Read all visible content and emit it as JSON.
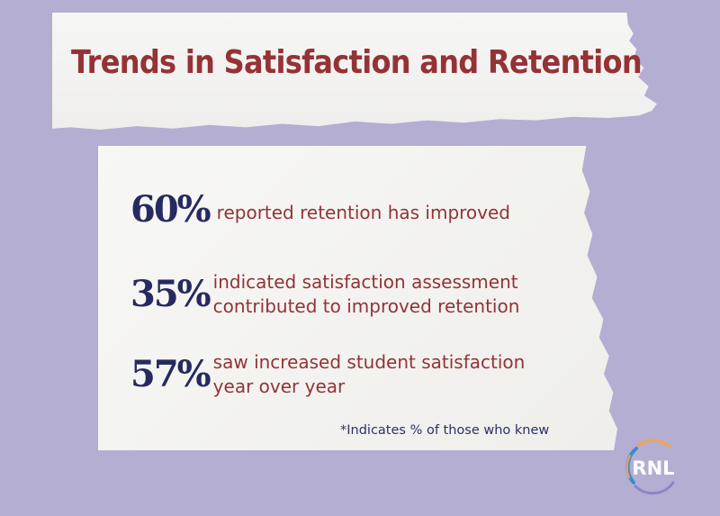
{
  "title": "Trends in Satisfaction and Retention",
  "stats": [
    {
      "value": "60%",
      "lines": [
        "reported retention has improved"
      ]
    },
    {
      "value": "35%",
      "lines": [
        "indicated satisfaction assessment",
        "contributed to improved retention"
      ]
    },
    {
      "value": "57%",
      "lines": [
        "saw increased student satisfaction",
        "year over year"
      ]
    }
  ],
  "footnote": "*Indicates % of those who knew",
  "logo": {
    "text": "RNL",
    "icon": "rnl-logo-icon"
  },
  "colors": {
    "background": "#b3aed2",
    "paper": "#f4f3f1",
    "title": "#953235",
    "stat_value": "#262a60",
    "stat_text": "#913437",
    "footnote": "#2c3164",
    "logo_arc_blue": "#3e8ad0",
    "logo_arc_orange": "#f0a54a",
    "logo_arc_purple": "#8c86c8"
  }
}
